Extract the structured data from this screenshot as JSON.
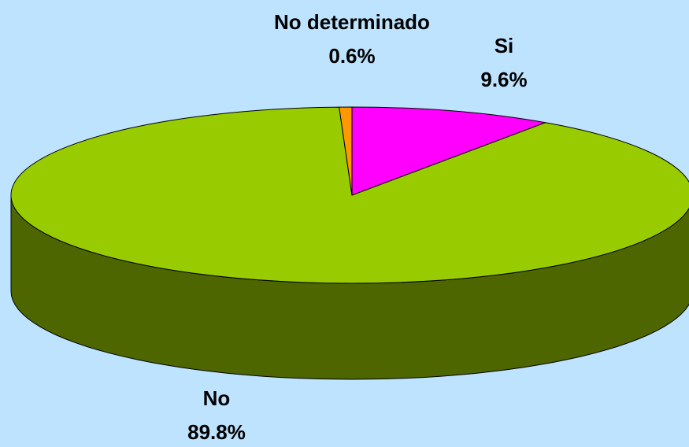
{
  "chart_data": {
    "type": "pie3d",
    "categories": [
      "Si",
      "No",
      "No determinado"
    ],
    "values": [
      9.6,
      89.8,
      0.6
    ],
    "value_labels": [
      "9.6%",
      "89.8%",
      "0.6%"
    ],
    "colors": [
      "#ff00ff",
      "#99cc00",
      "#ff9900"
    ]
  }
}
